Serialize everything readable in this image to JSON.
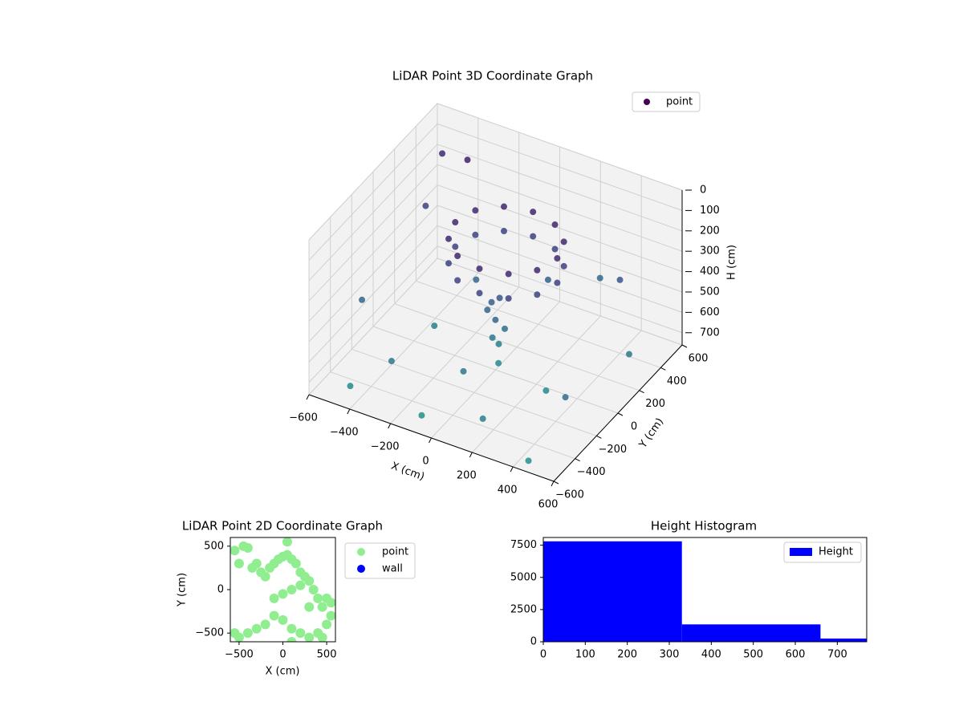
{
  "chart_data": [
    {
      "type": "scatter3d",
      "title": "LiDAR Point 3D Coordinate Graph",
      "xlabel": "X (cm)",
      "ylabel": "Y (cm)",
      "zlabel": "H (cm)",
      "legend": "upper right",
      "colormap": "viridis",
      "z_inverted": true,
      "xlim": [
        -600,
        600
      ],
      "ylim": [
        -600,
        600
      ],
      "zlim": [
        0,
        760
      ],
      "xticks": [
        {
          "value": -600,
          "label": "−600"
        },
        {
          "value": -400,
          "label": "−400"
        },
        {
          "value": -200,
          "label": "−200"
        },
        0,
        200,
        400,
        600
      ],
      "yticks": [
        {
          "value": -600,
          "label": "−600"
        },
        {
          "value": -400,
          "label": "−400"
        },
        {
          "value": -200,
          "label": "−200"
        },
        0,
        200,
        400,
        600
      ],
      "zticks": [
        0,
        100,
        200,
        300,
        400,
        500,
        600,
        700
      ],
      "series": [
        {
          "name": "point",
          "x": [
            250,
            217,
            125,
            0,
            -125,
            -217,
            -250,
            -217,
            -125,
            0,
            125,
            217,
            250,
            217,
            125,
            0,
            -125,
            -217,
            -250,
            -217,
            -125,
            0,
            125,
            217,
            20,
            -30,
            10,
            40,
            -10,
            0,
            30,
            -40,
            -500,
            -400,
            -550,
            -300,
            200,
            500,
            400,
            -200,
            300,
            -100,
            550,
            -450,
            100,
            -300,
            450,
            0,
            -550,
            250
          ],
          "y": [
            100,
            225,
            317,
            350,
            317,
            225,
            100,
            -25,
            -117,
            -150,
            -117,
            -25,
            100,
            225,
            317,
            350,
            317,
            225,
            100,
            -25,
            -117,
            -150,
            -117,
            -25,
            0,
            20,
            -20,
            10,
            -10,
            30,
            -30,
            0,
            300,
            500,
            -200,
            -400,
            -500,
            -300,
            400,
            200,
            -100,
            -500,
            200,
            -500,
            300,
            0,
            -550,
            -300,
            550,
            500
          ],
          "h": [
            180,
            180,
            180,
            180,
            180,
            180,
            180,
            180,
            180,
            180,
            180,
            180,
            300,
            300,
            300,
            300,
            300,
            300,
            300,
            300,
            300,
            300,
            300,
            300,
            400,
            450,
            500,
            550,
            600,
            650,
            700,
            480,
            300,
            150,
            500,
            600,
            650,
            550,
            400,
            500,
            700,
            740,
            600,
            720,
            450,
            650,
            740,
            600,
            200,
            500
          ]
        }
      ]
    },
    {
      "type": "scatter",
      "title": "LiDAR Point 2D Coordinate Graph",
      "xlabel": "X (cm)",
      "ylabel": "Y (cm)",
      "legend": "outside right",
      "xlim": [
        -600,
        600
      ],
      "ylim": [
        -600,
        600
      ],
      "xticks": [
        {
          "value": -500,
          "label": "−500"
        },
        0,
        500
      ],
      "yticks": [
        {
          "value": -500,
          "label": "−500"
        },
        0,
        500
      ],
      "series": [
        {
          "name": "point",
          "color": "#90ee90",
          "x": [
            -550,
            -500,
            -450,
            -400,
            -350,
            -300,
            -250,
            -200,
            -150,
            -100,
            -50,
            0,
            50,
            100,
            150,
            200,
            250,
            300,
            350,
            400,
            450,
            500,
            550,
            -500,
            -400,
            -300,
            -200,
            -100,
            0,
            100,
            200,
            300,
            400,
            500,
            550,
            -100,
            0,
            100,
            200,
            300,
            50,
            -550,
            450,
            100
          ],
          "y": [
            450,
            300,
            500,
            480,
            250,
            300,
            200,
            150,
            250,
            300,
            350,
            380,
            400,
            350,
            300,
            200,
            150,
            100,
            0,
            -100,
            -200,
            -100,
            -300,
            -550,
            -500,
            -450,
            -400,
            -300,
            -350,
            -450,
            -500,
            -550,
            -500,
            -400,
            -150,
            -100,
            -50,
            0,
            50,
            -200,
            550,
            -500,
            -550,
            -600
          ]
        },
        {
          "name": "wall",
          "color": "#0000ff",
          "x": [],
          "y": []
        }
      ]
    },
    {
      "type": "histogram",
      "title": "Height Histogram",
      "legend": "upper right",
      "series": [
        {
          "name": "Height",
          "color": "#0000ff"
        }
      ],
      "bins": [
        0,
        330,
        660,
        770
      ],
      "counts": [
        7800,
        1350,
        250
      ],
      "xlim": [
        0,
        770
      ],
      "ylim": [
        0,
        8100
      ],
      "xticks": [
        0,
        100,
        200,
        300,
        400,
        500,
        600,
        700
      ],
      "yticks": [
        0,
        2500,
        5000,
        7500
      ]
    }
  ]
}
